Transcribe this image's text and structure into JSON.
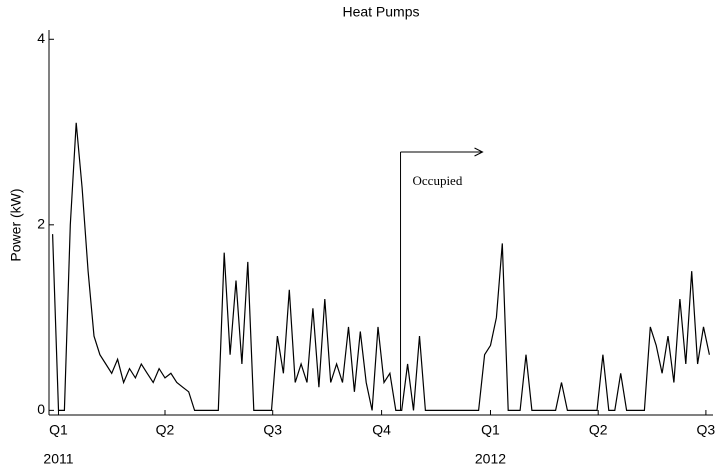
{
  "chart_data": {
    "type": "line",
    "title": "Heat Pumps",
    "y_label": "Power (kW)",
    "x": [
      -5,
      0,
      5,
      10,
      15,
      20,
      25,
      30,
      35,
      40,
      45,
      50,
      55,
      60,
      65,
      70,
      75,
      80,
      85,
      90,
      95,
      100,
      105,
      110,
      115,
      120,
      125,
      130,
      135,
      140,
      145,
      150,
      155,
      160,
      165,
      170,
      175,
      180,
      185,
      190,
      195,
      200,
      205,
      210,
      215,
      220,
      225,
      230,
      235,
      240,
      245,
      250,
      255,
      260,
      265,
      270,
      275,
      280,
      285,
      290,
      295,
      300,
      305,
      310,
      315,
      320,
      325,
      330,
      335,
      340,
      345,
      350,
      355,
      360,
      365,
      370,
      375,
      380,
      385,
      390,
      395,
      400,
      405,
      410,
      415,
      420,
      425,
      430,
      435,
      440,
      445,
      450,
      455,
      460,
      465,
      470,
      475,
      480,
      485,
      490,
      495,
      500,
      505,
      510,
      515,
      520,
      525,
      530,
      535,
      540,
      545,
      550
    ],
    "series": [
      {
        "name": "Heat Pumps",
        "color": "#000000",
        "values": [
          1.9,
          0,
          0,
          2.0,
          3.1,
          2.4,
          1.5,
          0.8,
          0.6,
          0.5,
          0.4,
          0.55,
          0.3,
          0.45,
          0.35,
          0.5,
          0.4,
          0.3,
          0.45,
          0.35,
          0.4,
          0.3,
          0.25,
          0.2,
          0,
          0,
          0,
          0,
          0,
          1.7,
          0.6,
          1.4,
          0.5,
          1.6,
          0,
          0,
          0,
          0,
          0.8,
          0.4,
          1.3,
          0.3,
          0.5,
          0.3,
          1.1,
          0.25,
          1.2,
          0.3,
          0.5,
          0.3,
          0.9,
          0.2,
          0.85,
          0.3,
          0,
          0.9,
          0.3,
          0.4,
          0,
          0,
          0.5,
          0,
          0.8,
          0,
          0,
          0,
          0,
          0,
          0,
          0,
          0,
          0,
          0,
          0.6,
          0.7,
          1.0,
          1.8,
          0,
          0,
          0,
          0.6,
          0,
          0,
          0,
          0,
          0,
          0.3,
          0,
          0,
          0,
          0,
          0,
          0,
          0.6,
          0,
          0,
          0.4,
          0,
          0,
          0,
          0,
          0.9,
          0.7,
          0.4,
          0.8,
          0.3,
          1.2,
          0.5,
          1.5,
          0.5,
          0.9,
          0.6
        ]
      }
    ],
    "xlim": [
      -8,
      553
    ],
    "ylim": [
      -0.05,
      4.1
    ],
    "yticks": [
      0,
      2,
      4
    ],
    "xticks": [
      {
        "value": 0,
        "label": "Q1"
      },
      {
        "value": 90,
        "label": "Q2"
      },
      {
        "value": 181,
        "label": "Q3"
      },
      {
        "value": 273,
        "label": "Q4"
      },
      {
        "value": 365,
        "label": "Q1"
      },
      {
        "value": 456,
        "label": "Q2"
      },
      {
        "value": 547,
        "label": "Q3"
      }
    ],
    "year_ticks": [
      {
        "value": 0,
        "label": "2011"
      },
      {
        "value": 365,
        "label": "2012"
      }
    ],
    "annotation": {
      "text": "Occupied",
      "x": 289
    }
  }
}
